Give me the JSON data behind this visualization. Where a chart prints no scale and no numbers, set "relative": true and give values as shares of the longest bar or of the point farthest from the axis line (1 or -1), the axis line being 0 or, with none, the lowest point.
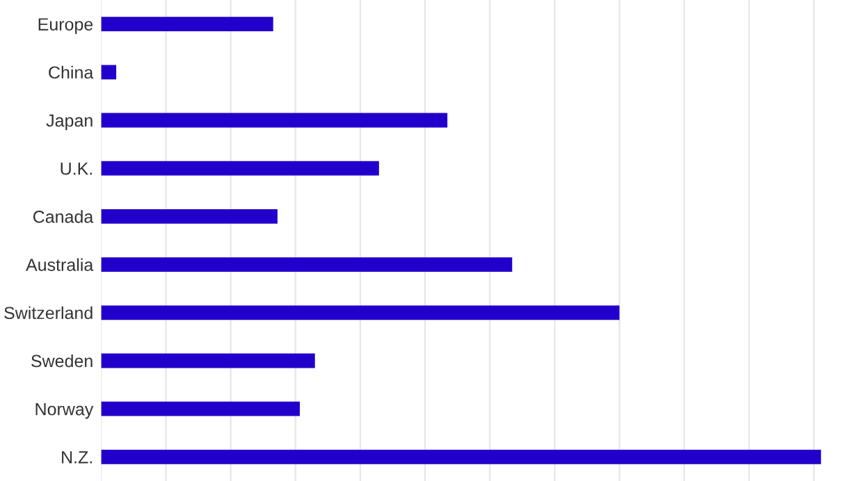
{
  "chart_data": {
    "type": "bar",
    "orientation": "horizontal",
    "relative": true,
    "grid": "x",
    "color": "#2200cc",
    "categories": [
      "Europe",
      "China",
      "Japan",
      "U.K.",
      "Canada",
      "Australia",
      "Switzerland",
      "Sweden",
      "Norway",
      "N.Z."
    ],
    "values": [
      0.239,
      0.021,
      0.481,
      0.386,
      0.245,
      0.571,
      0.72,
      0.297,
      0.276,
      1
    ]
  }
}
